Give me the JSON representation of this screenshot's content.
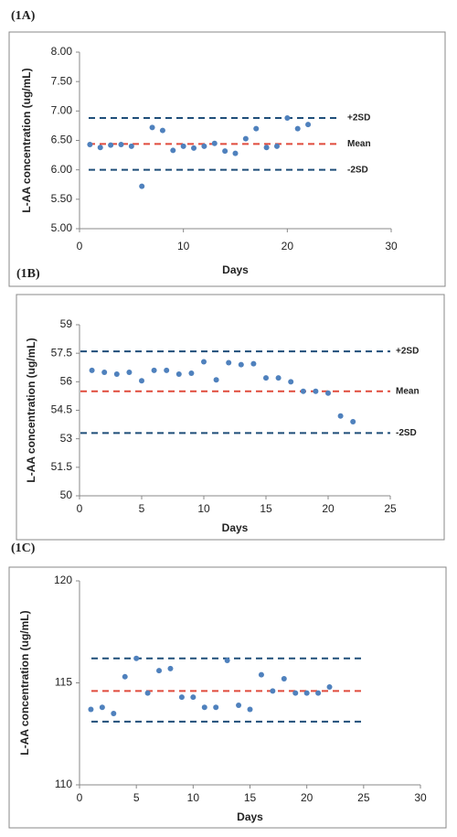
{
  "chart_data": [
    {
      "type": "scatter",
      "panel": "(1A)",
      "x_label": "Days",
      "y_label": "L-AA concentration (ug/mL)",
      "x": [
        1,
        2,
        3,
        4,
        5,
        6,
        7,
        8,
        9,
        10,
        11,
        12,
        13,
        14,
        15,
        16,
        17,
        18,
        19,
        20,
        21,
        22
      ],
      "values": [
        6.43,
        6.38,
        6.42,
        6.43,
        6.4,
        5.72,
        6.72,
        6.67,
        6.33,
        6.4,
        6.37,
        6.4,
        6.45,
        6.32,
        6.28,
        6.53,
        6.7,
        6.38,
        6.4,
        6.88,
        6.7,
        6.77
      ],
      "color": "#4f81bd",
      "xlim": [
        0,
        30
      ],
      "xticks": [
        0,
        10,
        20,
        30
      ],
      "ylim": [
        5,
        8
      ],
      "yticks": [
        {
          "value": 5,
          "label": "5.00"
        },
        {
          "value": 5.5,
          "label": "5.50"
        },
        {
          "value": 6,
          "label": "6.00"
        },
        {
          "value": 6.5,
          "label": "6.50"
        },
        {
          "value": 7,
          "label": "7.00"
        },
        {
          "value": 7.5,
          "label": "7.50"
        },
        {
          "value": 8,
          "label": "8.00"
        }
      ],
      "reference_lines": [
        {
          "value": 6.88,
          "label": "+2SD",
          "color": "#1f4e79"
        },
        {
          "value": 6.44,
          "label": "Mean",
          "color": "#e04b3c"
        },
        {
          "value": 6.0,
          "label": "-2SD",
          "color": "#1f4e79"
        }
      ]
    },
    {
      "type": "scatter",
      "panel": "(1B)",
      "x_label": "Days",
      "y_label": "L-AA concentration (ug/mL)",
      "x": [
        1,
        2,
        3,
        4,
        5,
        6,
        7,
        8,
        9,
        10,
        11,
        12,
        13,
        14,
        15,
        16,
        17,
        18,
        19,
        20,
        21,
        22
      ],
      "values": [
        56.6,
        56.5,
        56.4,
        56.5,
        56.05,
        56.6,
        56.6,
        56.4,
        56.45,
        57.05,
        56.1,
        57.0,
        56.9,
        56.95,
        56.2,
        56.2,
        56.0,
        55.5,
        55.5,
        55.4,
        54.2,
        53.9
      ],
      "color": "#4f81bd",
      "xlim": [
        0,
        25
      ],
      "xticks": [
        0,
        5,
        10,
        15,
        20,
        25
      ],
      "ylim": [
        50,
        59
      ],
      "yticks": [
        50,
        51.5,
        53,
        54.5,
        56,
        57.5,
        59
      ],
      "reference_lines": [
        {
          "value": 57.6,
          "label": "+2SD",
          "color": "#1f4e79"
        },
        {
          "value": 55.5,
          "label": "Mean",
          "color": "#e04b3c"
        },
        {
          "value": 53.3,
          "label": "-2SD",
          "color": "#1f4e79"
        }
      ]
    },
    {
      "type": "scatter",
      "panel": "(1C)",
      "x_label": "Days",
      "y_label": "L-AA concentration (ug/mL)",
      "x": [
        1,
        2,
        3,
        4,
        5,
        6,
        7,
        8,
        9,
        10,
        11,
        12,
        13,
        14,
        15,
        16,
        17,
        18,
        19,
        20,
        21,
        22
      ],
      "values": [
        113.7,
        113.8,
        113.5,
        115.3,
        116.2,
        114.5,
        115.6,
        115.7,
        114.3,
        114.3,
        113.8,
        113.8,
        116.1,
        113.9,
        113.7,
        115.4,
        114.6,
        115.2,
        114.5,
        114.5,
        114.5,
        114.8
      ],
      "color": "#4f81bd",
      "xlim": [
        0,
        30
      ],
      "xticks": [
        0,
        5,
        10,
        15,
        20,
        25,
        30
      ],
      "ylim": [
        110,
        120
      ],
      "yticks": [
        110,
        115,
        120
      ],
      "reference_lines": [
        {
          "value": 116.2,
          "color": "#1f4e79"
        },
        {
          "value": 114.6,
          "color": "#e04b3c"
        },
        {
          "value": 113.1,
          "color": "#1f4e79"
        }
      ]
    }
  ]
}
